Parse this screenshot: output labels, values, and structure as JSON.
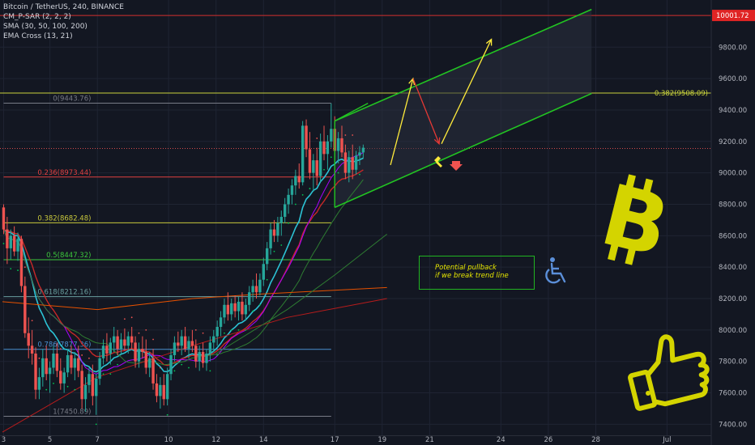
{
  "legend": {
    "symbol_line": "Bitcoin / TetherUS, 240, BINANCE",
    "indicators": [
      {
        "label": "CM_P-SAR (2, 2, 2)"
      },
      {
        "label": "SMA (30, 50, 100, 200)"
      },
      {
        "label": "EMA Cross (13, 21)"
      }
    ]
  },
  "colors": {
    "background": "#131722",
    "candle_up": "#26a69a",
    "candle_down": "#ef5350",
    "grid": "#1f2433",
    "channel": "#22c422",
    "fib_line": "#787b86",
    "ema_fast": "#2cc3d5",
    "ema_slow": "#c62828",
    "sma_30": "#aa00ff",
    "sma_50": "#2e7d32",
    "sma_100": "#e65100",
    "sma_200": "#b71c1c",
    "psar": "#00c853",
    "arrow_up": "#ffeb3b",
    "arrow_down": "#e53935",
    "bitcoin_logo": "#d4d400",
    "note_border": "#21b421",
    "note_text": "#e6e600",
    "last_price_label": "#e02424"
  },
  "annotation": {
    "note_line1": "Potential pullback",
    "note_line2": "if we break trend line",
    "wheelchair_icon": "wheelchair-icon",
    "thumbs_icon": "thumbs-up-icon",
    "logo_icon": "bitcoin-logo-icon"
  },
  "chart_data": {
    "type": "candlestick",
    "title": "",
    "xlabel": "",
    "ylabel": "",
    "ylim": [
      7330,
      10100
    ],
    "x_ticks": [
      {
        "label": "3",
        "x": 0.05
      },
      {
        "label": "5",
        "x": 2
      },
      {
        "label": "7",
        "x": 4
      },
      {
        "label": "10",
        "x": 7
      },
      {
        "label": "12",
        "x": 9
      },
      {
        "label": "14",
        "x": 11
      },
      {
        "label": "17",
        "x": 14
      },
      {
        "label": "19",
        "x": 16
      },
      {
        "label": "21",
        "x": 18
      },
      {
        "label": "24",
        "x": 21
      },
      {
        "label": "26",
        "x": 23
      },
      {
        "label": "28",
        "x": 25
      },
      {
        "label": "Jul",
        "x": 28
      }
    ],
    "y_ticks": [
      7400,
      7600,
      7800,
      8000,
      8200,
      8400,
      8600,
      8800,
      9000,
      9200,
      9400,
      9600,
      9800
    ],
    "y_tick_labels": [
      "7400.00",
      "7600.00",
      "7800.00",
      "8000.00",
      "8200.00",
      "8400.00",
      "8600.00",
      "8800.00",
      "9000.00",
      "9200.00",
      "9400.00",
      "9600.00",
      "9800.00"
    ],
    "last_price": {
      "value": 10001.72,
      "label": "10001.72"
    },
    "current_price_y": 9155,
    "fib_levels": [
      {
        "label": "0(9443.76)",
        "value": 9443.76,
        "color": "#787b86"
      },
      {
        "label": "0.236(8973.44)",
        "value": 8973.44,
        "color": "#e04040"
      },
      {
        "label": "0.382(8682.48)",
        "value": 8682.48,
        "color": "#c8c83c"
      },
      {
        "label": "0.5(8447.32)",
        "value": 8447.32,
        "color": "#3cc83c"
      },
      {
        "label": "0.618(8212.16)",
        "value": 8212.16,
        "color": "#6aa0a0"
      },
      {
        "label": "0.786(7877.36)",
        "value": 7877.36,
        "color": "#4a90d0"
      },
      {
        "label": "1(7450.89)",
        "value": 7450.89,
        "color": "#787b86"
      }
    ],
    "horizontal_level": {
      "label": "0.382(9508.09)",
      "value": 9508.09,
      "color": "#c8d23c"
    },
    "channel": {
      "upper": [
        [
          14.0,
          9330
        ],
        [
          24.82,
          10040
        ]
      ],
      "lower": [
        [
          14.0,
          8780
        ],
        [
          24.82,
          9505
        ]
      ]
    },
    "projection_arrows": [
      {
        "from": [
          16.35,
          9050
        ],
        "to": [
          17.3,
          9600
        ],
        "color": "up"
      },
      {
        "from": [
          17.3,
          9600
        ],
        "to": [
          18.4,
          9185
        ],
        "color": "down"
      },
      {
        "from": [
          18.5,
          9185
        ],
        "to": [
          20.6,
          9850
        ],
        "color": "up"
      }
    ],
    "candles": [
      {
        "t": 0.05,
        "o": 8780,
        "h": 8800,
        "l": 8610,
        "c": 8640
      },
      {
        "t": 0.2,
        "o": 8640,
        "h": 8720,
        "l": 8420,
        "c": 8520
      },
      {
        "t": 0.35,
        "o": 8520,
        "h": 8640,
        "l": 8450,
        "c": 8600
      },
      {
        "t": 0.5,
        "o": 8600,
        "h": 8660,
        "l": 8470,
        "c": 8500
      },
      {
        "t": 0.65,
        "o": 8500,
        "h": 8620,
        "l": 8440,
        "c": 8580
      },
      {
        "t": 0.8,
        "o": 8580,
        "h": 8600,
        "l": 8240,
        "c": 8280
      },
      {
        "t": 0.95,
        "o": 8280,
        "h": 8340,
        "l": 7950,
        "c": 7980
      },
      {
        "t": 1.1,
        "o": 7980,
        "h": 8080,
        "l": 7820,
        "c": 7900
      },
      {
        "t": 1.25,
        "o": 7900,
        "h": 8000,
        "l": 7780,
        "c": 7850
      },
      {
        "t": 1.4,
        "o": 7850,
        "h": 7890,
        "l": 7560,
        "c": 7620
      },
      {
        "t": 1.55,
        "o": 7620,
        "h": 7760,
        "l": 7560,
        "c": 7700
      },
      {
        "t": 1.7,
        "o": 7700,
        "h": 7880,
        "l": 7640,
        "c": 7820
      },
      {
        "t": 1.85,
        "o": 7820,
        "h": 7900,
        "l": 7680,
        "c": 7720
      },
      {
        "t": 2.0,
        "o": 7720,
        "h": 7800,
        "l": 7600,
        "c": 7760
      },
      {
        "t": 2.15,
        "o": 7760,
        "h": 7900,
        "l": 7720,
        "c": 7850
      },
      {
        "t": 2.3,
        "o": 7850,
        "h": 7920,
        "l": 7700,
        "c": 7740
      },
      {
        "t": 2.45,
        "o": 7740,
        "h": 7820,
        "l": 7620,
        "c": 7660
      },
      {
        "t": 2.6,
        "o": 7660,
        "h": 7760,
        "l": 7600,
        "c": 7730
      },
      {
        "t": 2.75,
        "o": 7730,
        "h": 7880,
        "l": 7700,
        "c": 7840
      },
      {
        "t": 2.9,
        "o": 7840,
        "h": 7900,
        "l": 7720,
        "c": 7760
      },
      {
        "t": 3.05,
        "o": 7760,
        "h": 7860,
        "l": 7680,
        "c": 7820
      },
      {
        "t": 3.2,
        "o": 7820,
        "h": 7900,
        "l": 7700,
        "c": 7740
      },
      {
        "t": 3.35,
        "o": 7740,
        "h": 7780,
        "l": 7500,
        "c": 7560
      },
      {
        "t": 3.5,
        "o": 7560,
        "h": 7700,
        "l": 7480,
        "c": 7650
      },
      {
        "t": 3.65,
        "o": 7650,
        "h": 7760,
        "l": 7600,
        "c": 7720
      },
      {
        "t": 3.8,
        "o": 7720,
        "h": 7780,
        "l": 7520,
        "c": 7580
      },
      {
        "t": 3.95,
        "o": 7580,
        "h": 7720,
        "l": 7460,
        "c": 7690
      },
      {
        "t": 4.1,
        "o": 7690,
        "h": 7860,
        "l": 7650,
        "c": 7820
      },
      {
        "t": 4.25,
        "o": 7820,
        "h": 7940,
        "l": 7780,
        "c": 7900
      },
      {
        "t": 4.4,
        "o": 7900,
        "h": 7980,
        "l": 7800,
        "c": 7850
      },
      {
        "t": 4.55,
        "o": 7850,
        "h": 7950,
        "l": 7780,
        "c": 7920
      },
      {
        "t": 4.7,
        "o": 7920,
        "h": 8020,
        "l": 7860,
        "c": 7960
      },
      {
        "t": 4.85,
        "o": 7960,
        "h": 8000,
        "l": 7840,
        "c": 7880
      },
      {
        "t": 5.0,
        "o": 7880,
        "h": 7980,
        "l": 7840,
        "c": 7940
      },
      {
        "t": 5.15,
        "o": 7940,
        "h": 8010,
        "l": 7870,
        "c": 7900
      },
      {
        "t": 5.3,
        "o": 7900,
        "h": 7990,
        "l": 7850,
        "c": 7960
      },
      {
        "t": 5.45,
        "o": 7960,
        "h": 8020,
        "l": 7880,
        "c": 7920
      },
      {
        "t": 5.6,
        "o": 7920,
        "h": 7960,
        "l": 7760,
        "c": 7800
      },
      {
        "t": 5.75,
        "o": 7800,
        "h": 7920,
        "l": 7760,
        "c": 7880
      },
      {
        "t": 5.9,
        "o": 7880,
        "h": 7960,
        "l": 7820,
        "c": 7860
      },
      {
        "t": 6.05,
        "o": 7860,
        "h": 7940,
        "l": 7720,
        "c": 7760
      },
      {
        "t": 6.2,
        "o": 7760,
        "h": 7860,
        "l": 7700,
        "c": 7820
      },
      {
        "t": 6.35,
        "o": 7820,
        "h": 7880,
        "l": 7620,
        "c": 7660
      },
      {
        "t": 6.5,
        "o": 7660,
        "h": 7720,
        "l": 7540,
        "c": 7580
      },
      {
        "t": 6.65,
        "o": 7580,
        "h": 7700,
        "l": 7500,
        "c": 7650
      },
      {
        "t": 6.8,
        "o": 7650,
        "h": 7720,
        "l": 7520,
        "c": 7560
      },
      {
        "t": 6.95,
        "o": 7560,
        "h": 7760,
        "l": 7520,
        "c": 7720
      },
      {
        "t": 7.1,
        "o": 7720,
        "h": 7880,
        "l": 7680,
        "c": 7840
      },
      {
        "t": 7.25,
        "o": 7840,
        "h": 7960,
        "l": 7800,
        "c": 7920
      },
      {
        "t": 7.4,
        "o": 7920,
        "h": 7990,
        "l": 7860,
        "c": 7900
      },
      {
        "t": 7.55,
        "o": 7900,
        "h": 8000,
        "l": 7840,
        "c": 7960
      },
      {
        "t": 7.7,
        "o": 7960,
        "h": 8020,
        "l": 7860,
        "c": 7880
      },
      {
        "t": 7.85,
        "o": 7880,
        "h": 7960,
        "l": 7820,
        "c": 7930
      },
      {
        "t": 8.0,
        "o": 7930,
        "h": 8000,
        "l": 7860,
        "c": 7900
      },
      {
        "t": 8.15,
        "o": 7900,
        "h": 7940,
        "l": 7760,
        "c": 7800
      },
      {
        "t": 8.3,
        "o": 7800,
        "h": 7900,
        "l": 7740,
        "c": 7860
      },
      {
        "t": 8.45,
        "o": 7860,
        "h": 7920,
        "l": 7760,
        "c": 7790
      },
      {
        "t": 8.6,
        "o": 7790,
        "h": 7880,
        "l": 7740,
        "c": 7850
      },
      {
        "t": 8.75,
        "o": 7850,
        "h": 7960,
        "l": 7800,
        "c": 7920
      },
      {
        "t": 8.9,
        "o": 7920,
        "h": 8000,
        "l": 7860,
        "c": 7960
      },
      {
        "t": 9.05,
        "o": 7960,
        "h": 8060,
        "l": 7900,
        "c": 8020
      },
      {
        "t": 9.2,
        "o": 8020,
        "h": 8120,
        "l": 7960,
        "c": 8080
      },
      {
        "t": 9.35,
        "o": 8080,
        "h": 8200,
        "l": 8040,
        "c": 8160
      },
      {
        "t": 9.5,
        "o": 8160,
        "h": 8240,
        "l": 8060,
        "c": 8100
      },
      {
        "t": 9.65,
        "o": 8100,
        "h": 8200,
        "l": 8060,
        "c": 8170
      },
      {
        "t": 9.8,
        "o": 8170,
        "h": 8220,
        "l": 8080,
        "c": 8120
      },
      {
        "t": 9.95,
        "o": 8120,
        "h": 8210,
        "l": 8060,
        "c": 8180
      },
      {
        "t": 10.1,
        "o": 8180,
        "h": 8240,
        "l": 8060,
        "c": 8100
      },
      {
        "t": 10.25,
        "o": 8100,
        "h": 8200,
        "l": 8060,
        "c": 8160
      },
      {
        "t": 10.4,
        "o": 8160,
        "h": 8280,
        "l": 8120,
        "c": 8240
      },
      {
        "t": 10.55,
        "o": 8240,
        "h": 8320,
        "l": 8180,
        "c": 8280
      },
      {
        "t": 10.7,
        "o": 8280,
        "h": 8360,
        "l": 8200,
        "c": 8240
      },
      {
        "t": 10.85,
        "o": 8240,
        "h": 8360,
        "l": 8220,
        "c": 8320
      },
      {
        "t": 11.0,
        "o": 8320,
        "h": 8460,
        "l": 8280,
        "c": 8420
      },
      {
        "t": 11.15,
        "o": 8420,
        "h": 8560,
        "l": 8380,
        "c": 8520
      },
      {
        "t": 11.3,
        "o": 8520,
        "h": 8680,
        "l": 8480,
        "c": 8640
      },
      {
        "t": 11.45,
        "o": 8640,
        "h": 8700,
        "l": 8560,
        "c": 8600
      },
      {
        "t": 11.6,
        "o": 8600,
        "h": 8720,
        "l": 8560,
        "c": 8680
      },
      {
        "t": 11.75,
        "o": 8680,
        "h": 8760,
        "l": 8600,
        "c": 8720
      },
      {
        "t": 11.9,
        "o": 8720,
        "h": 8840,
        "l": 8680,
        "c": 8800
      },
      {
        "t": 12.05,
        "o": 8800,
        "h": 8900,
        "l": 8740,
        "c": 8860
      },
      {
        "t": 12.2,
        "o": 8860,
        "h": 8960,
        "l": 8800,
        "c": 8920
      },
      {
        "t": 12.35,
        "o": 8920,
        "h": 9020,
        "l": 8860,
        "c": 8980
      },
      {
        "t": 12.5,
        "o": 8980,
        "h": 9060,
        "l": 8900,
        "c": 8940
      },
      {
        "t": 12.65,
        "o": 8940,
        "h": 9330,
        "l": 8920,
        "c": 9300
      },
      {
        "t": 12.8,
        "o": 9300,
        "h": 9340,
        "l": 9100,
        "c": 9150
      },
      {
        "t": 12.95,
        "o": 9150,
        "h": 9260,
        "l": 8960,
        "c": 9000
      },
      {
        "t": 13.1,
        "o": 9000,
        "h": 9120,
        "l": 8880,
        "c": 9080
      },
      {
        "t": 13.25,
        "o": 9080,
        "h": 9160,
        "l": 8920,
        "c": 8980
      },
      {
        "t": 13.4,
        "o": 8980,
        "h": 9250,
        "l": 8940,
        "c": 9200
      },
      {
        "t": 13.55,
        "o": 9200,
        "h": 9300,
        "l": 9080,
        "c": 9120
      },
      {
        "t": 13.7,
        "o": 9120,
        "h": 9240,
        "l": 9020,
        "c": 9200
      },
      {
        "t": 13.85,
        "o": 9200,
        "h": 9443,
        "l": 9160,
        "c": 9280
      },
      {
        "t": 14.0,
        "o": 9280,
        "h": 9360,
        "l": 9100,
        "c": 9140
      },
      {
        "t": 14.15,
        "o": 9140,
        "h": 9260,
        "l": 9060,
        "c": 9220
      },
      {
        "t": 14.3,
        "o": 9220,
        "h": 9300,
        "l": 9100,
        "c": 9130
      },
      {
        "t": 14.45,
        "o": 9130,
        "h": 9180,
        "l": 8960,
        "c": 9000
      },
      {
        "t": 14.6,
        "o": 9000,
        "h": 9140,
        "l": 8940,
        "c": 9100
      },
      {
        "t": 14.75,
        "o": 9100,
        "h": 9180,
        "l": 8960,
        "c": 9020
      },
      {
        "t": 14.9,
        "o": 9020,
        "h": 9140,
        "l": 8990,
        "c": 9110
      },
      {
        "t": 15.05,
        "o": 9110,
        "h": 9170,
        "l": 9050,
        "c": 9130
      },
      {
        "t": 15.2,
        "o": 9130,
        "h": 9180,
        "l": 9090,
        "c": 9160
      }
    ]
  }
}
